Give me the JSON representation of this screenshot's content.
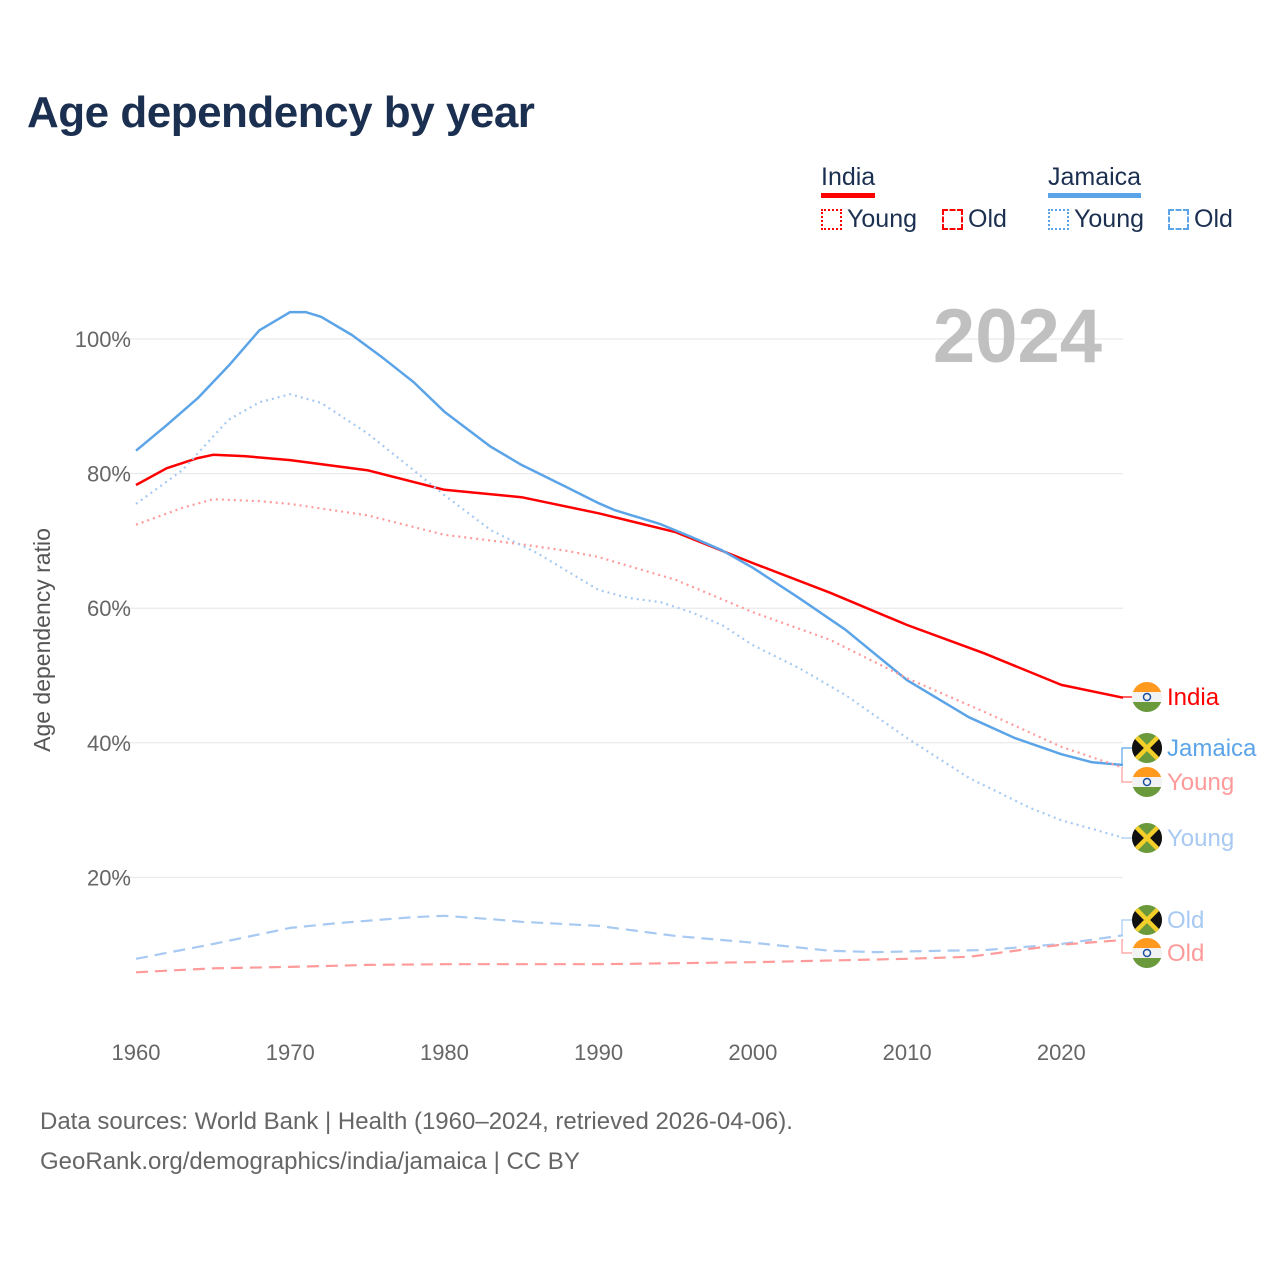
{
  "title": "Age dependency by year",
  "legend": {
    "groups": [
      {
        "country": "India",
        "color": "#ff0000",
        "young_label": "Young",
        "old_label": "Old"
      },
      {
        "country": "Jamaica",
        "color": "#5ca4e8",
        "young_label": "Young",
        "old_label": "Old"
      }
    ]
  },
  "footer": {
    "line1": "Data sources: World Bank | Health (1960–2024, retrieved 2026-04-06).",
    "line2": "GeoRank.org/demographics/india/jamaica | CC BY"
  },
  "chart_data": {
    "type": "line",
    "title": "Age dependency by year",
    "xlabel": "",
    "ylabel": "Age dependency ratio",
    "xlim": [
      1960,
      2024
    ],
    "ylim": [
      0,
      105
    ],
    "x_ticks": [
      1960,
      1970,
      1980,
      1990,
      2000,
      2010,
      2020
    ],
    "x_tick_labels": [
      "1960",
      "1970",
      "1980",
      "1990",
      "2000",
      "2010",
      "2020"
    ],
    "y_ticks": [
      20,
      40,
      60,
      80,
      100
    ],
    "y_tick_labels": [
      "20%",
      "40%",
      "60%",
      "80%",
      "100%"
    ],
    "grid": true,
    "year_watermark": "2024",
    "series": [
      {
        "name": "India",
        "end_label": "India",
        "country": "india",
        "color": "#ff0000",
        "style": "solid",
        "x": [
          1960,
          1962,
          1964,
          1965,
          1967,
          1970,
          1975,
          1980,
          1985,
          1990,
          1995,
          2000,
          2005,
          2010,
          2015,
          2020,
          2024
        ],
        "y": [
          78.3,
          80.8,
          82.3,
          82.8,
          82.6,
          82.0,
          80.5,
          77.6,
          76.5,
          74.1,
          71.3,
          66.7,
          62.3,
          57.5,
          53.3,
          48.6,
          46.7
        ]
      },
      {
        "name": "Jamaica",
        "end_label": "Jamaica",
        "country": "jamaica",
        "color": "#5ca4e8",
        "style": "solid",
        "x": [
          1960,
          1962,
          1964,
          1966,
          1968,
          1970,
          1971,
          1972,
          1974,
          1976,
          1978,
          1980,
          1983,
          1985,
          1988,
          1990,
          1991,
          1994,
          1996,
          1998,
          2000,
          2003,
          2006,
          2010,
          2014,
          2017,
          2020,
          2022,
          2024
        ],
        "y": [
          83.4,
          87.2,
          91.2,
          96.0,
          101.3,
          104.0,
          104.0,
          103.3,
          100.6,
          97.2,
          93.6,
          89.2,
          84.0,
          81.3,
          77.9,
          75.6,
          74.6,
          72.5,
          70.6,
          68.6,
          66.0,
          61.5,
          56.8,
          49.3,
          43.8,
          40.7,
          38.3,
          37.1,
          36.7
        ]
      },
      {
        "name": "India Young",
        "end_label": "Young",
        "country": "india",
        "color": "#ff9a9a",
        "style": "dotted",
        "x": [
          1960,
          1963,
          1965,
          1968,
          1970,
          1975,
          1980,
          1985,
          1988,
          1990,
          1995,
          2000,
          2005,
          2010,
          2015,
          2020,
          2024
        ],
        "y": [
          72.4,
          74.9,
          76.2,
          75.9,
          75.5,
          73.8,
          70.9,
          69.5,
          68.5,
          67.6,
          64.2,
          59.4,
          55.3,
          49.6,
          44.6,
          39.4,
          36.3
        ]
      },
      {
        "name": "Jamaica Young",
        "end_label": "Young",
        "country": "jamaica",
        "color": "#a7c9f2",
        "style": "dotted",
        "x": [
          1960,
          1963,
          1966,
          1968,
          1970,
          1972,
          1975,
          1978,
          1980,
          1983,
          1986,
          1990,
          1992,
          1994,
          1996,
          1998,
          2000,
          2003,
          2006,
          2010,
          2014,
          2018,
          2020,
          2024
        ],
        "y": [
          75.5,
          80.5,
          88.0,
          90.6,
          91.8,
          90.5,
          86.0,
          80.5,
          76.8,
          71.6,
          68.2,
          62.7,
          61.5,
          60.9,
          59.4,
          57.5,
          54.5,
          51.1,
          47.1,
          40.7,
          34.8,
          30.3,
          28.5,
          25.9
        ]
      },
      {
        "name": "Jamaica Old",
        "end_label": "Old",
        "country": "jamaica",
        "color": "#a7c9f2",
        "style": "dashed",
        "x": [
          1960,
          1965,
          1970,
          1973,
          1978,
          1980,
          1983,
          1985,
          1990,
          1995,
          2000,
          2005,
          2008,
          2012,
          2015,
          2020,
          2024
        ],
        "y": [
          7.9,
          10.1,
          12.5,
          13.2,
          14.1,
          14.3,
          13.8,
          13.4,
          12.8,
          11.3,
          10.3,
          9.1,
          8.9,
          9.1,
          9.2,
          10.1,
          11.4
        ]
      },
      {
        "name": "India Old",
        "end_label": "Old",
        "country": "india",
        "color": "#ff9a9a",
        "style": "dashed",
        "x": [
          1960,
          1965,
          1970,
          1975,
          1980,
          1990,
          2000,
          2010,
          2014,
          2020,
          2024
        ],
        "y": [
          5.9,
          6.5,
          6.7,
          7.0,
          7.1,
          7.1,
          7.4,
          7.9,
          8.2,
          10.0,
          10.7
        ]
      }
    ]
  }
}
